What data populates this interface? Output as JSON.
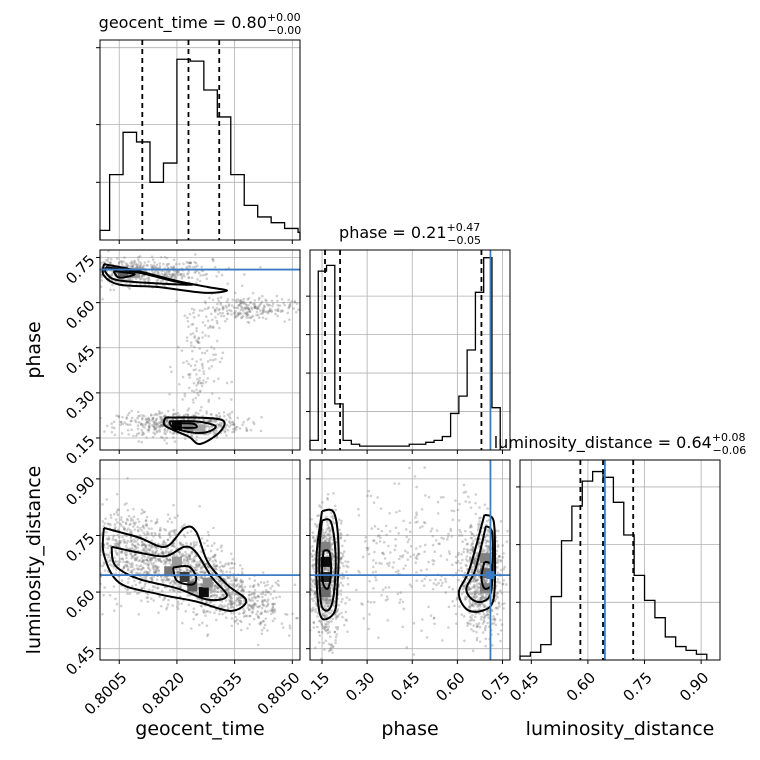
{
  "chart_data": {
    "type": "corner",
    "parameters": [
      "geocent_time",
      "phase",
      "luminosity_distance"
    ],
    "truth_color": "#3a7dc4",
    "truths": {
      "phase": 0.71,
      "luminosity_distance": 0.645
    },
    "panels": [
      {
        "kind": "hist",
        "parameter": "geocent_time",
        "title_text": "geocent_time = 0.80",
        "title_sup": "+0.00",
        "title_sub": "−0.00",
        "xlim": [
          0.8,
          0.8052
        ],
        "ylim": [
          0,
          1.04
        ],
        "bin_edges": [
          0.7999,
          0.80025,
          0.8006,
          0.80095,
          0.8013,
          0.80165,
          0.802,
          0.80235,
          0.8027,
          0.80305,
          0.8034,
          0.80375,
          0.8041,
          0.80445,
          0.8048,
          0.80515
        ],
        "counts": [
          0.05,
          0.34,
          0.56,
          0.51,
          0.3,
          0.4,
          0.94,
          0.93,
          0.78,
          0.64,
          0.34,
          0.18,
          0.12,
          0.09,
          0.06,
          0.04
        ],
        "quantiles": [
          0.8011,
          0.8023,
          0.8031
        ],
        "yticks": [
          0.3,
          0.6,
          1.0
        ],
        "xticks": [
          0.8005,
          0.802,
          0.8035,
          0.805
        ]
      },
      {
        "kind": "hist",
        "parameter": "phase",
        "title_text": "phase = 0.21",
        "title_sup": "+0.47",
        "title_sub": "−0.05",
        "xlim": [
          0.11,
          0.775
        ],
        "ylim": [
          0,
          1.04
        ],
        "bin_edges": [
          0.11,
          0.1375,
          0.165,
          0.1925,
          0.22,
          0.2475,
          0.275,
          0.3025,
          0.33,
          0.3575,
          0.385,
          0.4125,
          0.44,
          0.4675,
          0.495,
          0.5225,
          0.55,
          0.5775,
          0.605,
          0.6325,
          0.66,
          0.6875,
          0.715,
          0.7425
        ],
        "counts": [
          0.05,
          0.93,
          0.96,
          0.24,
          0.05,
          0.03,
          0.02,
          0.02,
          0.02,
          0.02,
          0.02,
          0.02,
          0.03,
          0.03,
          0.04,
          0.05,
          0.07,
          0.19,
          0.28,
          0.52,
          0.82,
          1.0,
          0.22
        ],
        "quantiles": [
          0.16,
          0.21,
          0.68
        ],
        "yticks": [
          0.2,
          0.4,
          0.6,
          0.8
        ],
        "xticks": [
          0.15,
          0.3,
          0.45,
          0.6,
          0.75
        ]
      },
      {
        "kind": "hist",
        "parameter": "luminosity_distance",
        "title_text": "luminosity_distance = 0.64",
        "title_sup": "+0.08",
        "title_sub": "−0.06",
        "xlim": [
          0.42,
          0.95
        ],
        "ylim": [
          0,
          1.04
        ],
        "bin_edges": [
          0.42,
          0.4475,
          0.475,
          0.5025,
          0.53,
          0.5575,
          0.585,
          0.6125,
          0.64,
          0.6675,
          0.695,
          0.7225,
          0.75,
          0.7775,
          0.805,
          0.8325,
          0.86,
          0.8875,
          0.915
        ],
        "counts": [
          0.02,
          0.04,
          0.08,
          0.33,
          0.62,
          0.8,
          0.93,
          0.98,
          0.95,
          0.82,
          0.65,
          0.44,
          0.31,
          0.22,
          0.12,
          0.07,
          0.05,
          0.03
        ],
        "quantiles": [
          0.58,
          0.64,
          0.72
        ],
        "yticks": [
          0.3,
          0.6,
          0.9
        ],
        "xticks": [
          0.45,
          0.6,
          0.75,
          0.9
        ]
      },
      {
        "kind": "2d",
        "x_parameter": "geocent_time",
        "y_parameter": "phase",
        "xlim": [
          0.8,
          0.8052
        ],
        "ylim": [
          0.11,
          0.775
        ],
        "xticks": [
          0.8005,
          0.802,
          0.8035,
          0.805
        ],
        "yticks": [
          0.15,
          0.3,
          0.45,
          0.6,
          0.75
        ],
        "modes": [
          {
            "cx": 0.8007,
            "cy": 0.7,
            "sx": 0.0011,
            "sy": 0.022,
            "slope": -0.011,
            "n": 620
          },
          {
            "cx": 0.8021,
            "cy": 0.195,
            "sx": 0.0008,
            "sy": 0.02,
            "slope": -0.02,
            "n": 540
          },
          {
            "cx": 0.8026,
            "cy": 0.38,
            "sx": 0.0003,
            "sy": 0.14,
            "slope": 0,
            "n": 160
          },
          {
            "cx": 0.8038,
            "cy": 0.58,
            "sx": 0.0006,
            "sy": 0.02,
            "slope": 0,
            "n": 220
          }
        ],
        "contours": [
          [
            [
              0.8001,
              0.728
            ],
            [
              0.801,
              0.705
            ],
            [
              0.802,
              0.672
            ],
            [
              0.8028,
              0.652
            ],
            [
              0.8033,
              0.64
            ],
            [
              0.8027,
              0.633
            ],
            [
              0.8015,
              0.652
            ],
            [
              0.8005,
              0.66
            ],
            [
              0.8001,
              0.69
            ],
            [
              0.8001,
              0.728
            ]
          ],
          [
            [
              0.80015,
              0.718
            ],
            [
              0.801,
              0.7
            ],
            [
              0.8019,
              0.672
            ],
            [
              0.8024,
              0.66
            ],
            [
              0.8015,
              0.664
            ],
            [
              0.80045,
              0.675
            ],
            [
              0.80015,
              0.7
            ],
            [
              0.80015,
              0.718
            ]
          ],
          [
            [
              0.80035,
              0.705
            ],
            [
              0.8009,
              0.695
            ],
            [
              0.8005,
              0.683
            ],
            [
              0.80035,
              0.705
            ]
          ],
          [
            [
              0.8017,
              0.218
            ],
            [
              0.8025,
              0.218
            ],
            [
              0.8032,
              0.208
            ],
            [
              0.8031,
              0.168
            ],
            [
              0.8026,
              0.13
            ],
            [
              0.8023,
              0.155
            ],
            [
              0.8017,
              0.19
            ],
            [
              0.8017,
              0.218
            ]
          ],
          [
            [
              0.8018,
              0.205
            ],
            [
              0.8025,
              0.205
            ],
            [
              0.803,
              0.19
            ],
            [
              0.8028,
              0.17
            ],
            [
              0.8024,
              0.168
            ],
            [
              0.8019,
              0.185
            ],
            [
              0.8018,
              0.205
            ]
          ],
          [
            [
              0.8019,
              0.198
            ],
            [
              0.8024,
              0.198
            ],
            [
              0.8025,
              0.185
            ],
            [
              0.8021,
              0.185
            ],
            [
              0.8019,
              0.198
            ]
          ]
        ],
        "dense_cells": [
          [
            0.8006,
            0.703,
            0.6
          ],
          [
            0.8009,
            0.698,
            0.35
          ],
          [
            0.802,
            0.192,
            0.95
          ],
          [
            0.8023,
            0.185,
            0.45
          ],
          [
            0.8026,
            0.178,
            0.3
          ]
        ]
      },
      {
        "kind": "2d",
        "x_parameter": "geocent_time",
        "y_parameter": "luminosity_distance",
        "xlim": [
          0.8,
          0.8052
        ],
        "ylim": [
          0.42,
          0.95
        ],
        "xticks": [
          0.8005,
          0.802,
          0.8035,
          0.805
        ],
        "yticks": [
          0.45,
          0.6,
          0.75,
          0.9
        ],
        "modes": [
          {
            "cx": 0.8008,
            "cy": 0.7,
            "sx": 0.0007,
            "sy": 0.06,
            "slope": -30,
            "n": 520
          },
          {
            "cx": 0.8023,
            "cy": 0.66,
            "sx": 0.0008,
            "sy": 0.05,
            "slope": -40,
            "n": 780
          },
          {
            "cx": 0.8037,
            "cy": 0.58,
            "sx": 0.0007,
            "sy": 0.035,
            "slope": -20,
            "n": 300
          }
        ],
        "contours": [
          [
            [
              0.8001,
              0.77
            ],
            [
              0.801,
              0.745
            ],
            [
              0.8017,
              0.72
            ],
            [
              0.8022,
              0.77
            ],
            [
              0.8025,
              0.76
            ],
            [
              0.8028,
              0.68
            ],
            [
              0.8033,
              0.62
            ],
            [
              0.8038,
              0.578
            ],
            [
              0.8034,
              0.55
            ],
            [
              0.8025,
              0.575
            ],
            [
              0.8015,
              0.595
            ],
            [
              0.8005,
              0.625
            ],
            [
              0.8001,
              0.7
            ],
            [
              0.8001,
              0.77
            ]
          ],
          [
            [
              0.8003,
              0.72
            ],
            [
              0.801,
              0.705
            ],
            [
              0.8017,
              0.695
            ],
            [
              0.8022,
              0.72
            ],
            [
              0.8025,
              0.705
            ],
            [
              0.8029,
              0.64
            ],
            [
              0.8033,
              0.59
            ],
            [
              0.8028,
              0.58
            ],
            [
              0.802,
              0.61
            ],
            [
              0.801,
              0.635
            ],
            [
              0.8004,
              0.67
            ],
            [
              0.8003,
              0.72
            ]
          ],
          [
            [
              0.8019,
              0.665
            ],
            [
              0.8023,
              0.668
            ],
            [
              0.8025,
              0.64
            ],
            [
              0.8024,
              0.62
            ],
            [
              0.802,
              0.63
            ],
            [
              0.8019,
              0.665
            ]
          ]
        ],
        "dense_cells": [
          [
            0.8018,
            0.655,
            0.5
          ],
          [
            0.8022,
            0.64,
            0.75
          ],
          [
            0.8024,
            0.615,
            0.6
          ],
          [
            0.8027,
            0.6,
            0.95
          ],
          [
            0.802,
            0.68,
            0.35
          ],
          [
            0.8028,
            0.625,
            0.4
          ]
        ]
      },
      {
        "kind": "2d",
        "x_parameter": "phase",
        "y_parameter": "luminosity_distance",
        "xlim": [
          0.11,
          0.775
        ],
        "ylim": [
          0.42,
          0.95
        ],
        "xticks": [
          0.15,
          0.3,
          0.45,
          0.6,
          0.75
        ],
        "yticks": [
          0.45,
          0.6,
          0.75,
          0.9
        ],
        "modes": [
          {
            "cx": 0.165,
            "cy": 0.64,
            "sx": 0.028,
            "sy": 0.08,
            "slope": 0,
            "n": 800
          },
          {
            "cx": 0.68,
            "cy": 0.64,
            "sx": 0.035,
            "sy": 0.07,
            "slope": 0,
            "n": 720
          },
          {
            "cx": 0.45,
            "cy": 0.68,
            "sx": 0.13,
            "sy": 0.1,
            "slope": 0,
            "n": 260
          }
        ],
        "contours": [
          [
            [
              0.15,
              0.815
            ],
            [
              0.19,
              0.81
            ],
            [
              0.205,
              0.72
            ],
            [
              0.2,
              0.6
            ],
            [
              0.19,
              0.545
            ],
            [
              0.15,
              0.53
            ],
            [
              0.135,
              0.59
            ],
            [
              0.132,
              0.7
            ],
            [
              0.15,
              0.815
            ]
          ],
          [
            [
              0.15,
              0.79
            ],
            [
              0.18,
              0.785
            ],
            [
              0.195,
              0.7
            ],
            [
              0.19,
              0.6
            ],
            [
              0.175,
              0.555
            ],
            [
              0.15,
              0.56
            ],
            [
              0.142,
              0.62
            ],
            [
              0.142,
              0.72
            ],
            [
              0.15,
              0.79
            ]
          ],
          [
            [
              0.155,
              0.71
            ],
            [
              0.175,
              0.705
            ],
            [
              0.18,
              0.65
            ],
            [
              0.17,
              0.61
            ],
            [
              0.155,
              0.62
            ],
            [
              0.15,
              0.66
            ],
            [
              0.155,
              0.71
            ]
          ],
          [
            [
              0.69,
              0.805
            ],
            [
              0.72,
              0.79
            ],
            [
              0.725,
              0.7
            ],
            [
              0.72,
              0.58
            ],
            [
              0.68,
              0.55
            ],
            [
              0.63,
              0.555
            ],
            [
              0.605,
              0.6
            ],
            [
              0.64,
              0.66
            ],
            [
              0.69,
              0.805
            ]
          ],
          [
            [
              0.695,
              0.775
            ],
            [
              0.715,
              0.76
            ],
            [
              0.718,
              0.69
            ],
            [
              0.712,
              0.6
            ],
            [
              0.685,
              0.575
            ],
            [
              0.65,
              0.58
            ],
            [
              0.63,
              0.61
            ],
            [
              0.66,
              0.66
            ],
            [
              0.695,
              0.775
            ]
          ],
          [
            [
              0.69,
              0.68
            ],
            [
              0.712,
              0.672
            ],
            [
              0.712,
              0.62
            ],
            [
              0.69,
              0.61
            ],
            [
              0.68,
              0.64
            ],
            [
              0.69,
              0.68
            ]
          ]
        ],
        "dense_cells": [
          [
            0.162,
            0.68,
            0.95
          ],
          [
            0.162,
            0.64,
            0.85
          ],
          [
            0.162,
            0.6,
            0.55
          ],
          [
            0.162,
            0.72,
            0.45
          ],
          [
            0.692,
            0.65,
            0.55
          ],
          [
            0.692,
            0.61,
            0.45
          ],
          [
            0.692,
            0.69,
            0.45
          ]
        ]
      }
    ]
  },
  "labels": {
    "x_geocent_time": "geocent_time",
    "x_phase": "phase",
    "x_luminosity_distance": "luminosity_distance",
    "y_phase": "phase",
    "y_luminosity_distance": "luminosity_distance"
  },
  "ticks": {
    "geocent_time": [
      "0.8005",
      "0.8020",
      "0.8035",
      "0.8050"
    ],
    "phase": [
      "0.15",
      "0.30",
      "0.45",
      "0.60",
      "0.75"
    ],
    "luminosity_distance": [
      "0.45",
      "0.60",
      "0.75",
      "0.90"
    ]
  }
}
